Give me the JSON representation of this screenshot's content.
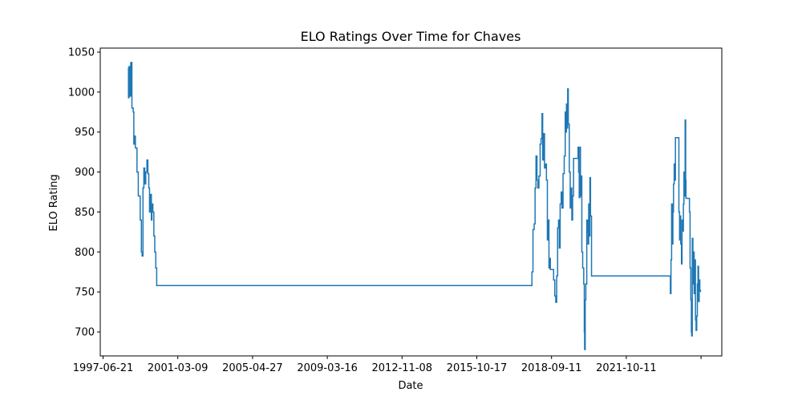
{
  "chart_data": {
    "type": "line",
    "title": "ELO Ratings Over Time for Chaves",
    "xlabel": "Date",
    "ylabel": "ELO Rating",
    "x_tick_labels": [
      "1997-06-21",
      "2001-03-09",
      "2005-04-27",
      "2009-03-16",
      "2012-11-08",
      "2015-10-17",
      "2018-09-11",
      "2021-10-11",
      ""
    ],
    "y_tick_labels": [
      "700",
      "750",
      "800",
      "850",
      "900",
      "950",
      "1000",
      "1050"
    ],
    "ylim": [
      670,
      1055
    ],
    "xlim": [
      "1997-03-25",
      "2024-10-15"
    ],
    "grid": false,
    "color": "#1f77b4",
    "series": [
      {
        "values": [
          [
            "1998-06-15",
            1030
          ],
          [
            "1998-06-25",
            993
          ],
          [
            "1998-07-05",
            1032
          ],
          [
            "1998-07-15",
            995
          ],
          [
            "1998-08-01",
            1037
          ],
          [
            "1998-08-20",
            980
          ],
          [
            "1998-09-10",
            975
          ],
          [
            "1998-09-20",
            935
          ],
          [
            "1998-10-01",
            945
          ],
          [
            "1998-10-15",
            930
          ],
          [
            "1998-11-10",
            900
          ],
          [
            "1998-12-01",
            870
          ],
          [
            "1999-01-01",
            840
          ],
          [
            "1999-01-20",
            800
          ],
          [
            "1999-02-01",
            795
          ],
          [
            "1999-02-15",
            880
          ],
          [
            "1999-03-01",
            905
          ],
          [
            "1999-03-15",
            885
          ],
          [
            "1999-04-01",
            900
          ],
          [
            "1999-04-20",
            915
          ],
          [
            "1999-05-05",
            898
          ],
          [
            "1999-05-20",
            880
          ],
          [
            "1999-06-01",
            850
          ],
          [
            "1999-06-15",
            872
          ],
          [
            "1999-07-01",
            840
          ],
          [
            "1999-07-10",
            860
          ],
          [
            "1999-07-25",
            850
          ],
          [
            "1999-08-10",
            820
          ],
          [
            "1999-08-25",
            800
          ],
          [
            "1999-09-10",
            780
          ],
          [
            "1999-09-25",
            758
          ],
          [
            "2016-05-01",
            758
          ],
          [
            "2016-05-15",
            775
          ],
          [
            "2016-06-01",
            828
          ],
          [
            "2016-06-20",
            835
          ],
          [
            "2016-07-05",
            880
          ],
          [
            "2016-07-20",
            920
          ],
          [
            "2016-08-05",
            890
          ],
          [
            "2016-08-20",
            880
          ],
          [
            "2016-09-05",
            895
          ],
          [
            "2016-09-25",
            935
          ],
          [
            "2016-10-10",
            942
          ],
          [
            "2016-10-25",
            973
          ],
          [
            "2016-11-05",
            915
          ],
          [
            "2016-11-20",
            948
          ],
          [
            "2016-12-05",
            905
          ],
          [
            "2016-12-20",
            910
          ],
          [
            "2017-01-05",
            890
          ],
          [
            "2017-01-20",
            815
          ],
          [
            "2017-02-05",
            840
          ],
          [
            "2017-02-15",
            780
          ],
          [
            "2017-03-01",
            792
          ],
          [
            "2017-03-10",
            778
          ],
          [
            "2017-04-01",
            778
          ],
          [
            "2017-05-01",
            765
          ],
          [
            "2017-05-20",
            745
          ],
          [
            "2017-06-05",
            737
          ],
          [
            "2017-06-20",
            770
          ],
          [
            "2017-07-05",
            830
          ],
          [
            "2017-07-20",
            840
          ],
          [
            "2017-08-01",
            805
          ],
          [
            "2017-08-15",
            860
          ],
          [
            "2017-09-01",
            875
          ],
          [
            "2017-09-15",
            855
          ],
          [
            "2017-10-01",
            898
          ],
          [
            "2017-10-20",
            920
          ],
          [
            "2017-11-05",
            975
          ],
          [
            "2017-11-15",
            950
          ],
          [
            "2017-11-25",
            985
          ],
          [
            "2017-12-05",
            955
          ],
          [
            "2017-12-15",
            1004
          ],
          [
            "2017-12-25",
            960
          ],
          [
            "2018-01-10",
            900
          ],
          [
            "2018-01-25",
            855
          ],
          [
            "2018-02-10",
            880
          ],
          [
            "2018-02-20",
            840
          ],
          [
            "2018-03-05",
            870
          ],
          [
            "2018-03-20",
            917
          ],
          [
            "2018-04-15",
            917
          ],
          [
            "2018-05-15",
            917
          ],
          [
            "2018-06-01",
            931
          ],
          [
            "2018-06-10",
            900
          ],
          [
            "2018-06-20",
            868
          ],
          [
            "2018-07-01",
            931
          ],
          [
            "2018-07-10",
            870
          ],
          [
            "2018-07-20",
            895
          ],
          [
            "2018-08-01",
            800
          ],
          [
            "2018-08-15",
            780
          ],
          [
            "2018-09-01",
            760
          ],
          [
            "2018-09-10",
            700
          ],
          [
            "2018-09-15",
            678
          ],
          [
            "2018-09-25",
            740
          ],
          [
            "2018-10-05",
            760
          ],
          [
            "2018-10-20",
            840
          ],
          [
            "2018-11-01",
            825
          ],
          [
            "2018-11-10",
            810
          ],
          [
            "2018-11-20",
            860
          ],
          [
            "2018-12-01",
            820
          ],
          [
            "2018-12-10",
            893
          ],
          [
            "2018-12-20",
            845
          ],
          [
            "2019-01-05",
            770
          ],
          [
            "2022-07-01",
            770
          ],
          [
            "2022-07-05",
            748
          ],
          [
            "2022-07-15",
            790
          ],
          [
            "2022-07-25",
            860
          ],
          [
            "2022-08-05",
            810
          ],
          [
            "2022-08-15",
            850
          ],
          [
            "2022-08-25",
            885
          ],
          [
            "2022-09-05",
            910
          ],
          [
            "2022-09-15",
            890
          ],
          [
            "2022-09-25",
            943
          ],
          [
            "2022-11-10",
            943
          ],
          [
            "2022-11-20",
            850
          ],
          [
            "2022-12-01",
            815
          ],
          [
            "2022-12-10",
            845
          ],
          [
            "2022-12-20",
            810
          ],
          [
            "2023-01-01",
            785
          ],
          [
            "2023-01-10",
            840
          ],
          [
            "2023-01-20",
            826
          ],
          [
            "2023-02-01",
            860
          ],
          [
            "2023-02-10",
            900
          ],
          [
            "2023-02-20",
            870
          ],
          [
            "2023-03-01",
            965
          ],
          [
            "2023-03-10",
            890
          ],
          [
            "2023-03-15",
            867
          ],
          [
            "2023-05-01",
            867
          ],
          [
            "2023-05-10",
            850
          ],
          [
            "2023-05-20",
            780
          ],
          [
            "2023-06-01",
            740
          ],
          [
            "2023-06-10",
            700
          ],
          [
            "2023-06-15",
            695
          ],
          [
            "2023-06-25",
            817
          ],
          [
            "2023-07-05",
            760
          ],
          [
            "2023-07-15",
            800
          ],
          [
            "2023-07-25",
            748
          ],
          [
            "2023-08-05",
            790
          ],
          [
            "2023-08-15",
            715
          ],
          [
            "2023-08-25",
            702
          ],
          [
            "2023-09-05",
            720
          ],
          [
            "2023-09-15",
            760
          ],
          [
            "2023-09-25",
            782
          ],
          [
            "2023-10-05",
            738
          ],
          [
            "2023-10-15",
            765
          ],
          [
            "2023-10-25",
            752
          ],
          [
            "2023-11-05",
            750
          ]
        ]
      }
    ]
  }
}
